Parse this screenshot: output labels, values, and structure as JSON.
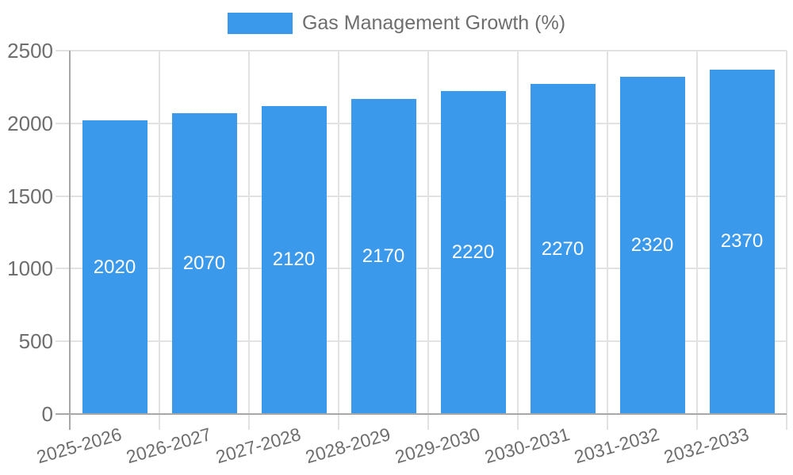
{
  "legend": {
    "series_label": "Gas Management Growth (%)"
  },
  "chart_data": {
    "type": "bar",
    "title": "",
    "series_name": "Gas Management Growth (%)",
    "categories": [
      "2025-2026",
      "2026-2027",
      "2027-2028",
      "2028-2029",
      "2029-2030",
      "2030-2031",
      "2031-2032",
      "2032-2033"
    ],
    "values": [
      2020,
      2070,
      2120,
      2170,
      2220,
      2270,
      2320,
      2370
    ],
    "xlabel": "",
    "ylabel": "",
    "ylim": [
      0,
      2500
    ],
    "y_ticks": [
      0,
      500,
      1000,
      1500,
      2000,
      2500
    ],
    "grid": true,
    "legend_position": "top-center",
    "value_labels": "inside-center",
    "x_tick_rotation_deg": -16,
    "colors": {
      "bar": "#3b99ec",
      "grid_line": "#e2e2e2",
      "axis_line": "#a8a8a8",
      "tick_text": "#6e6e6e",
      "legend_text": "#6e6e6e",
      "value_label_text": "#ffffff",
      "background": "#ffffff"
    }
  }
}
